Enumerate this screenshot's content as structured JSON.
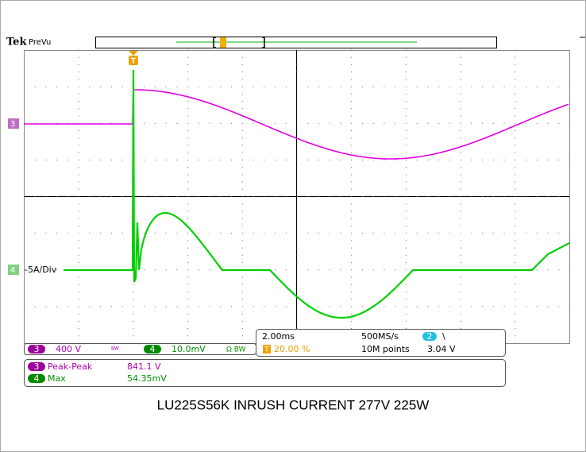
{
  "header": {
    "brand": "Tek",
    "mode": "PreVu"
  },
  "trigger_marker": "T",
  "channels": {
    "ch3": "3",
    "ch4": "4",
    "ch4_note": "-5A/Div"
  },
  "status": {
    "ch3_badge": "3",
    "ch3_scale": "400 V",
    "ch3_bw": "BW",
    "ch4_badge": "4",
    "ch4_scale": "10.0mV",
    "ch4_coupling": "Ω BW",
    "timebase": "2.00ms",
    "sample_rate": "500MS/s",
    "trigger_badge": "2",
    "trigger_slope": "\\",
    "trigger_level": "3.04 V",
    "trigger_t": "T",
    "trigger_position": "20.00 %",
    "record_length": "10M points"
  },
  "measurements": [
    {
      "badge": "3",
      "name": "Peak-Peak",
      "value": "841.1 V"
    },
    {
      "badge": "4",
      "name": "Max",
      "value": "54.35mV"
    }
  ],
  "caption": "LU225S56K INRUSH CURRENT 277V 225W"
}
